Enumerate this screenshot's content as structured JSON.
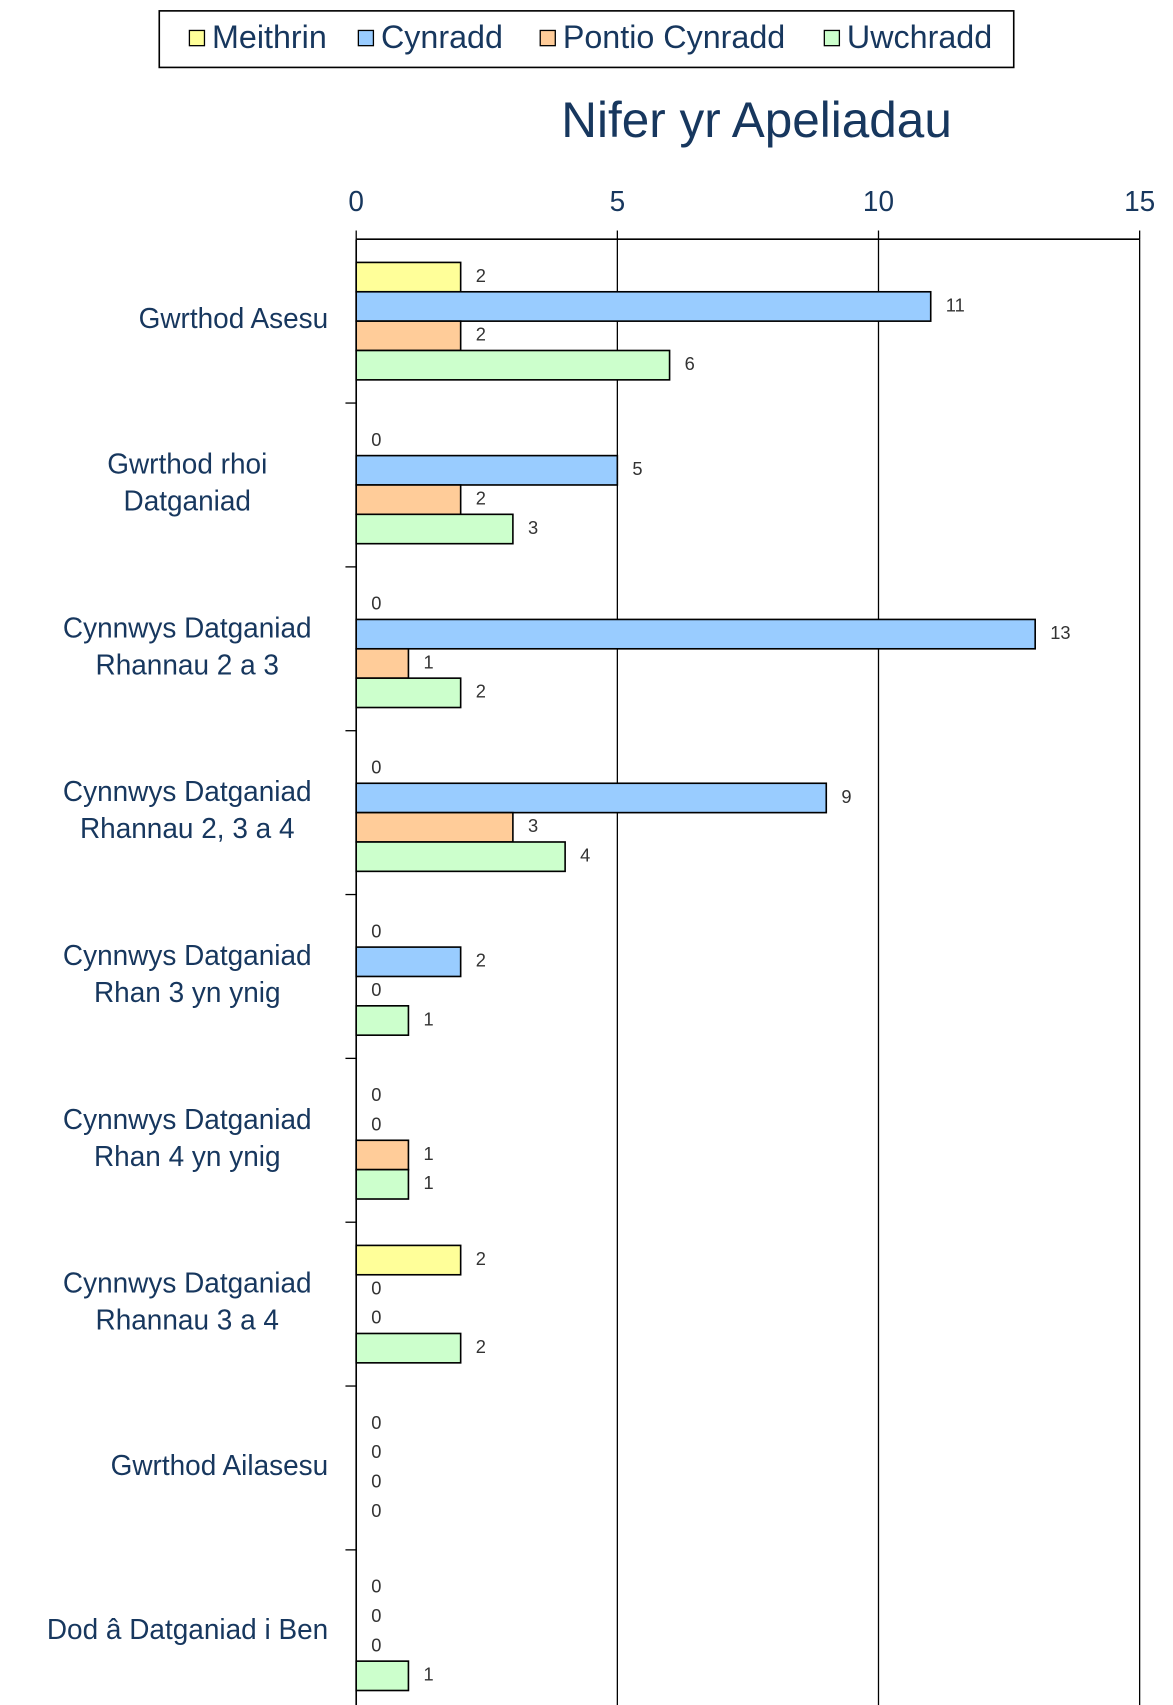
{
  "chart_data": {
    "type": "barh",
    "title": "Nifer yr Apeliadau",
    "categories": [
      [
        "Gwrthod Asesu"
      ],
      [
        "Gwrthod rhoi",
        "Datganiad"
      ],
      [
        "Cynnwys Datganiad",
        "Rhannau 2 a 3"
      ],
      [
        "Cynnwys Datganiad",
        "Rhannau 2, 3 a 4"
      ],
      [
        "Cynnwys Datganiad",
        "Rhan 3 yn ynig"
      ],
      [
        "Cynnwys Datganiad",
        "Rhan 4 yn ynig"
      ],
      [
        "Cynnwys Datganiad",
        "Rhannau 3 a 4"
      ],
      [
        "Gwrthod Ailasesu"
      ],
      [
        "Dod â Datganiad i Ben"
      ]
    ],
    "series": [
      {
        "name": "Meithrin",
        "color": "#ffff99",
        "values": [
          2,
          0,
          0,
          0,
          0,
          0,
          2,
          0,
          0
        ]
      },
      {
        "name": "Cynradd",
        "color": "#99ccff",
        "values": [
          11,
          5,
          13,
          9,
          2,
          0,
          0,
          0,
          0
        ]
      },
      {
        "name": "Pontio Cynradd",
        "color": "#ffcc99",
        "values": [
          2,
          2,
          1,
          3,
          0,
          1,
          0,
          0,
          0
        ]
      },
      {
        "name": "Uwchradd",
        "color": "#ccffcc",
        "values": [
          6,
          3,
          2,
          4,
          1,
          1,
          2,
          0,
          1
        ]
      }
    ],
    "xlim": [
      0,
      15
    ],
    "xticks": [
      0,
      5,
      10,
      15
    ],
    "grid": true,
    "legend": "top"
  }
}
